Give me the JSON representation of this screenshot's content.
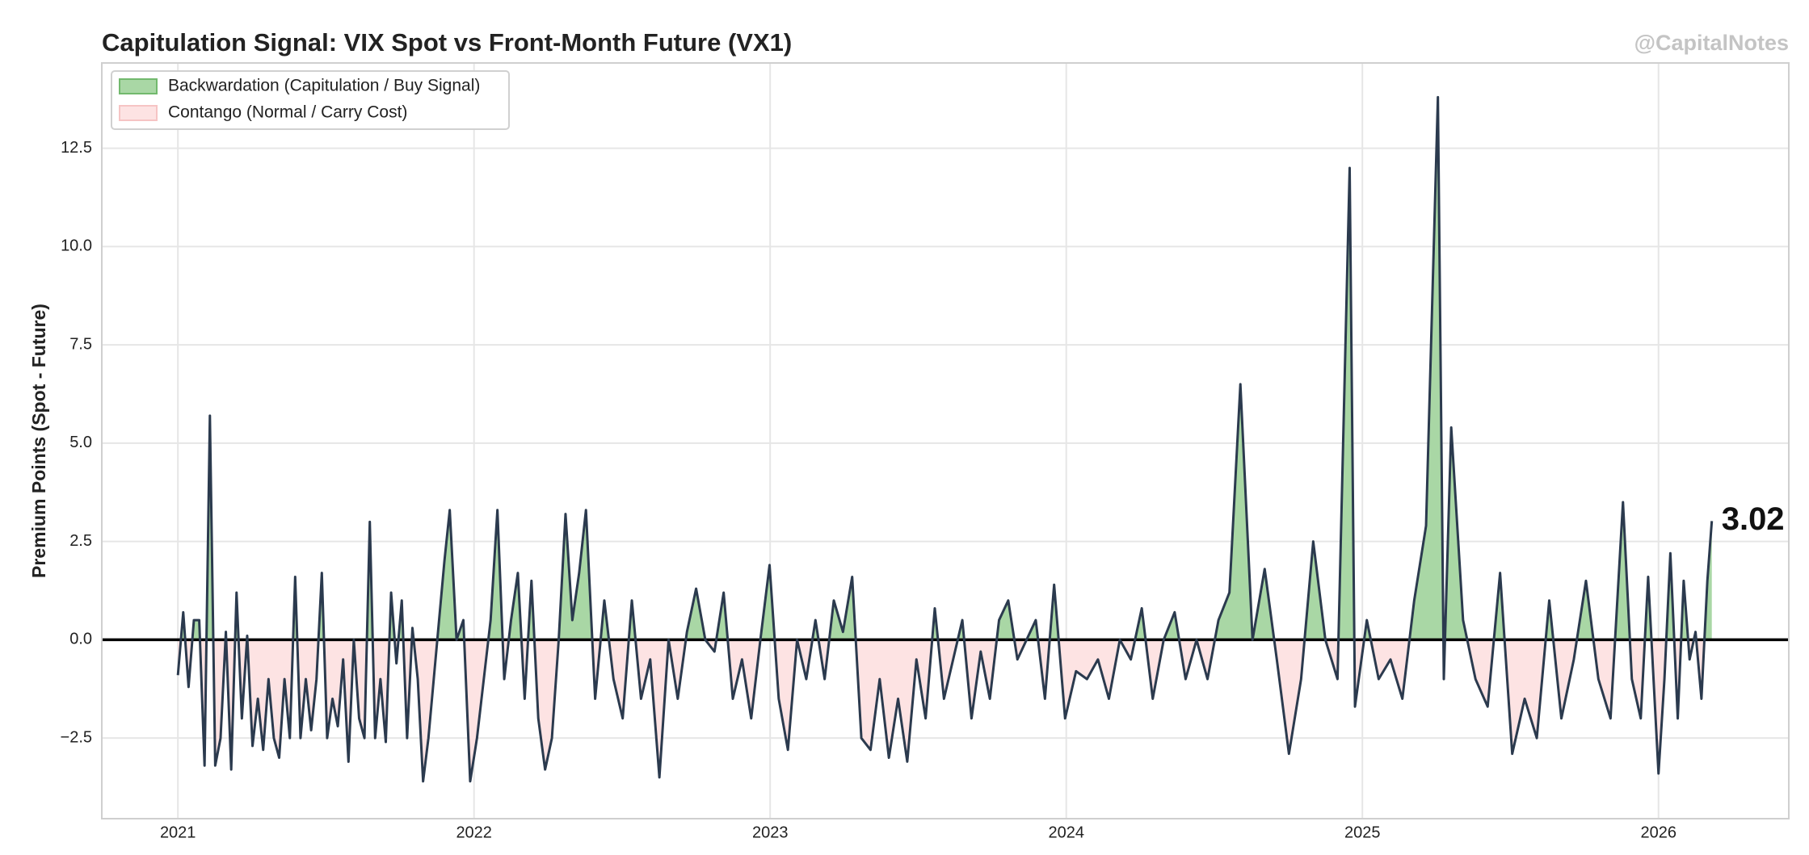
{
  "chart_data": {
    "type": "line",
    "title": "Capitulation Signal: VIX Spot vs Front-Month Future (VX1)",
    "watermark": "@CapitalNotes",
    "ylabel": "Premium Points (Spot - Future)",
    "xlim": [
      2020.743,
      2026.44
    ],
    "ylim": [
      -4.55,
      14.67
    ],
    "xticks": [
      2021,
      2022,
      2023,
      2024,
      2025,
      2026
    ],
    "yticks": [
      {
        "value": -2.5,
        "label": "−2.5"
      },
      {
        "value": 0,
        "label": "0.0"
      },
      2.5,
      {
        "value": 5,
        "label": "5.0"
      },
      7.5,
      {
        "value": 10,
        "label": "10.0"
      },
      12.5
    ],
    "grid": true,
    "hline": 0,
    "legend": "upper left",
    "fills": [
      {
        "name": "Backwardation (Capitulation / Buy Signal)",
        "color": "#a9d7a5",
        "edge": "#72b96d"
      },
      {
        "name": "Contango (Normal / Carry Cost)",
        "color": "#fde3e3",
        "edge": "#f6c4c4"
      }
    ],
    "x": [
      2021.0,
      2021.018,
      2021.036,
      2021.054,
      2021.072,
      2021.09,
      2021.108,
      2021.126,
      2021.144,
      2021.162,
      2021.18,
      2021.198,
      2021.216,
      2021.234,
      2021.252,
      2021.27,
      2021.288,
      2021.306,
      2021.324,
      2021.342,
      2021.36,
      2021.378,
      2021.396,
      2021.414,
      2021.432,
      2021.45,
      2021.468,
      2021.486,
      2021.504,
      2021.522,
      2021.54,
      2021.558,
      2021.576,
      2021.594,
      2021.612,
      2021.63,
      2021.648,
      2021.666,
      2021.684,
      2021.702,
      2021.72,
      2021.738,
      2021.756,
      2021.774,
      2021.792,
      2021.81,
      2021.828,
      2021.846,
      2021.864,
      2021.882,
      2021.9,
      2021.918,
      2021.941,
      2021.964,
      2021.987,
      2022.01,
      2022.033,
      2022.056,
      2022.079,
      2022.102,
      2022.125,
      2022.148,
      2022.171,
      2022.194,
      2022.217,
      2022.24,
      2022.263,
      2022.286,
      2022.309,
      2022.332,
      2022.355,
      2022.378,
      2022.409,
      2022.44,
      2022.471,
      2022.502,
      2022.533,
      2022.564,
      2022.595,
      2022.626,
      2022.657,
      2022.688,
      2022.719,
      2022.75,
      2022.781,
      2022.812,
      2022.843,
      2022.874,
      2022.905,
      2022.936,
      2022.967,
      2022.998,
      2023.029,
      2023.06,
      2023.091,
      2023.122,
      2023.153,
      2023.184,
      2023.215,
      2023.246,
      2023.277,
      2023.308,
      2023.339,
      2023.37,
      2023.401,
      2023.432,
      2023.463,
      2023.494,
      2023.525,
      2023.556,
      2023.587,
      2023.618,
      2023.649,
      2023.68,
      2023.711,
      2023.742,
      2023.773,
      2023.804,
      2023.835,
      2023.866,
      2023.897,
      2023.928,
      2023.959,
      2023.996,
      2024.033,
      2024.07,
      2024.107,
      2024.144,
      2024.181,
      2024.218,
      2024.255,
      2024.292,
      2024.329,
      2024.366,
      2024.403,
      2024.44,
      2024.477,
      2024.514,
      2024.551,
      2024.588,
      2024.629,
      2024.67,
      2024.711,
      2024.752,
      2024.793,
      2024.834,
      2024.875,
      2024.916,
      2024.957,
      2024.975,
      2025.015,
      2025.055,
      2025.095,
      2025.135,
      2025.175,
      2025.215,
      2025.255,
      2025.275,
      2025.3,
      2025.34,
      2025.382,
      2025.423,
      2025.465,
      2025.506,
      2025.548,
      2025.589,
      2025.631,
      2025.672,
      2025.714,
      2025.755,
      2025.797,
      2025.838,
      2025.88,
      2025.91,
      2025.94,
      2025.965,
      2026.0,
      2026.02,
      2026.04,
      2026.065,
      2026.085,
      2026.105,
      2026.125,
      2026.145,
      2026.165,
      2026.18
    ],
    "series": [
      {
        "color": "#2b3a4e",
        "values": [
          -0.9,
          0.7,
          -1.2,
          0.5,
          0.5,
          -3.2,
          5.7,
          -3.2,
          -2.5,
          0.2,
          -3.3,
          1.2,
          -2.0,
          0.1,
          -2.7,
          -1.5,
          -2.8,
          -1.0,
          -2.5,
          -3.0,
          -1.0,
          -2.5,
          1.6,
          -2.5,
          -1.0,
          -2.3,
          -1.0,
          1.7,
          -2.5,
          -1.5,
          -2.2,
          -0.5,
          -3.1,
          0.0,
          -2.0,
          -2.5,
          3.0,
          -2.5,
          -1.0,
          -2.6,
          1.2,
          -0.6,
          1.0,
          -2.5,
          0.3,
          -1.0,
          -3.6,
          -2.5,
          -1.0,
          0.5,
          2.0,
          3.3,
          0.0,
          0.5,
          -3.6,
          -2.5,
          -1.0,
          0.5,
          3.3,
          -1.0,
          0.5,
          1.7,
          -1.5,
          1.5,
          -2.0,
          -3.3,
          -2.5,
          0.0,
          3.2,
          0.5,
          1.7,
          3.3,
          -1.5,
          1.0,
          -1.0,
          -2.0,
          1.0,
          -1.5,
          -0.5,
          -3.5,
          0.0,
          -1.5,
          0.2,
          1.3,
          0.0,
          -0.3,
          1.2,
          -1.5,
          -0.5,
          -2.0,
          0.0,
          1.9,
          -1.5,
          -2.8,
          0.0,
          -1.0,
          0.5,
          -1.0,
          1.0,
          0.2,
          1.6,
          -2.5,
          -2.8,
          -1.0,
          -3.0,
          -1.5,
          -3.1,
          -0.5,
          -2.0,
          0.8,
          -1.5,
          -0.5,
          0.5,
          -2.0,
          -0.3,
          -1.5,
          0.5,
          1.0,
          -0.5,
          0.0,
          0.5,
          -1.5,
          1.4,
          -2.0,
          -0.8,
          -1.0,
          -0.5,
          -1.5,
          0.0,
          -0.5,
          0.8,
          -1.5,
          0.0,
          0.7,
          -1.0,
          0.0,
          -1.0,
          0.5,
          1.2,
          6.5,
          0.0,
          1.8,
          -0.5,
          -2.9,
          -1.0,
          2.5,
          0.0,
          -1.0,
          12.0,
          -1.7,
          0.5,
          -1.0,
          -0.5,
          -1.5,
          1.0,
          2.9,
          13.8,
          -1.0,
          5.4,
          0.5,
          -1.0,
          -1.7,
          1.7,
          -2.9,
          -1.5,
          -2.5,
          1.0,
          -2.0,
          -0.5,
          1.5,
          -1.0,
          -2.0,
          3.5,
          -1.0,
          -2.0,
          1.6,
          -3.4,
          -1.0,
          2.2,
          -2.0,
          1.5,
          -0.5,
          0.2,
          -1.5,
          1.5,
          3.02
        ]
      }
    ],
    "annotations": [
      {
        "text": "3.02",
        "x": 2026.18,
        "y": 3.02
      }
    ]
  }
}
